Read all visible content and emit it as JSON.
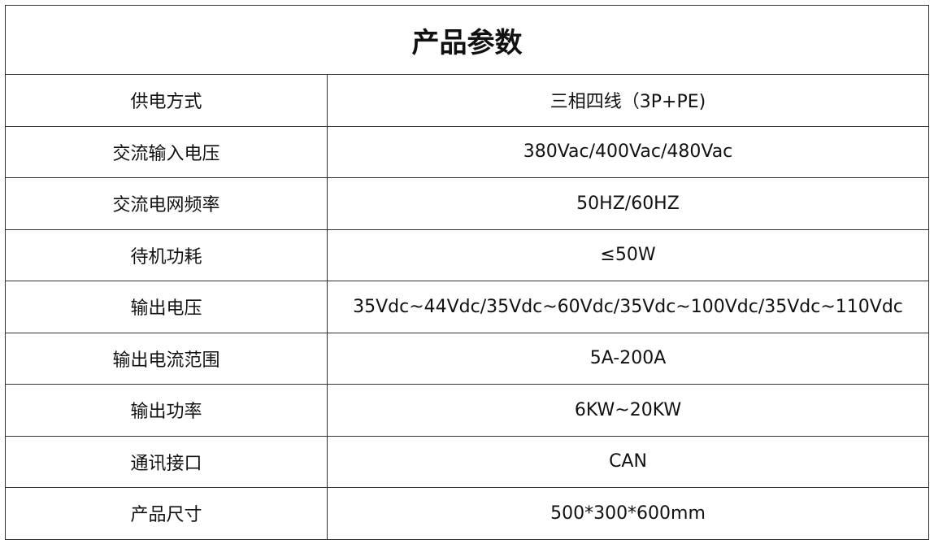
{
  "title": "产品参数",
  "rows": [
    {
      "label": "供电方式",
      "value": "三相四线（3P+PE)"
    },
    {
      "label": "交流输入电压",
      "value": "380Vac/400Vac/480Vac"
    },
    {
      "label": "交流电网频率",
      "value": "50HZ/60HZ"
    },
    {
      "label": "待机功耗",
      "value": "≤50W"
    },
    {
      "label": "输出电压",
      "value": "35Vdc~44Vdc/35Vdc~60Vdc/35Vdc~100Vdc/35Vdc~110Vdc"
    },
    {
      "label": "输出电流范围",
      "value": "5A-200A"
    },
    {
      "label": "输出功率",
      "value": "6KW~20KW"
    },
    {
      "label": "通讯接口",
      "value": "CAN"
    },
    {
      "label": "产品尺寸",
      "value": "500*300*600mm"
    }
  ]
}
